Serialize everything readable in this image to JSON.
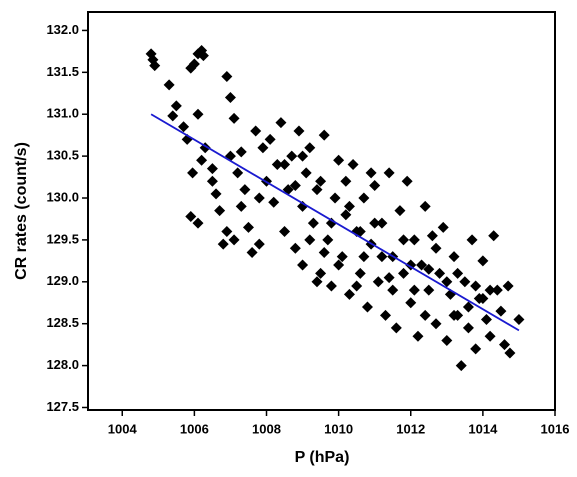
{
  "chart_data": {
    "type": "scatter",
    "xlabel": "P (hPa)",
    "ylabel": "CR rates (count/s)",
    "marker": "diamond",
    "color": "#000000",
    "x": [
      1004.8,
      1004.85,
      1004.9,
      1005.3,
      1005.4,
      1005.5,
      1005.7,
      1005.9,
      1006.0,
      1006.1,
      1006.2,
      1006.25,
      1005.8,
      1005.95,
      1005.9,
      1006.1,
      1006.2,
      1006.1,
      1006.3,
      1006.5,
      1006.6,
      1006.7,
      1006.9,
      1007.0,
      1007.1,
      1007.0,
      1007.2,
      1006.9,
      1007.1,
      1007.3,
      1007.4,
      1007.5,
      1007.6,
      1007.8,
      1007.9,
      1007.7,
      1007.8,
      1007.3,
      1006.5,
      1006.8,
      1008.0,
      1008.1,
      1008.2,
      1008.3,
      1008.4,
      1008.5,
      1008.6,
      1008.7,
      1008.8,
      1008.9,
      1009.0,
      1009.0,
      1009.1,
      1009.2,
      1009.3,
      1009.4,
      1009.5,
      1009.6,
      1009.7,
      1009.8,
      1009.9,
      1010.0,
      1010.1,
      1010.2,
      1010.3,
      1010.4,
      1010.5,
      1010.6,
      1010.7,
      1010.8,
      1010.9,
      1011.0,
      1011.1,
      1011.2,
      1011.3,
      1011.4,
      1011.5,
      1011.6,
      1011.7,
      1011.8,
      1011.9,
      1012.0,
      1012.1,
      1012.2,
      1012.3,
      1012.4,
      1012.5,
      1012.6,
      1012.7,
      1012.8,
      1012.9,
      1013.0,
      1013.1,
      1013.2,
      1013.3,
      1013.4,
      1013.5,
      1013.6,
      1013.7,
      1013.8,
      1013.9,
      1014.0,
      1014.1,
      1014.2,
      1014.3,
      1014.4,
      1014.5,
      1014.6,
      1014.7,
      1014.75,
      1015.0,
      1008.5,
      1009.2,
      1009.5,
      1009.8,
      1010.0,
      1010.3,
      1010.6,
      1010.9,
      1011.2,
      1011.5,
      1011.8,
      1012.1,
      1012.4,
      1012.7,
      1013.0,
      1013.3,
      1013.6,
      1014.0,
      1009.0,
      1009.4,
      1010.2,
      1010.7,
      1011.0,
      1011.4,
      1012.0,
      1012.5,
      1013.2,
      1013.8,
      1014.2,
      1008.8,
      1009.6,
      1010.5
    ],
    "values": [
      131.72,
      131.65,
      131.58,
      131.35,
      130.98,
      131.1,
      130.85,
      131.55,
      131.6,
      131.72,
      131.76,
      131.7,
      130.7,
      130.3,
      129.78,
      129.7,
      130.45,
      131.0,
      130.6,
      130.2,
      130.05,
      129.85,
      131.45,
      131.2,
      130.95,
      130.5,
      130.3,
      129.6,
      129.5,
      129.9,
      130.1,
      129.65,
      129.35,
      129.45,
      130.6,
      130.8,
      130.0,
      130.55,
      130.35,
      129.45,
      130.2,
      130.7,
      129.95,
      130.4,
      130.9,
      129.6,
      130.1,
      130.5,
      129.4,
      130.8,
      129.9,
      129.2,
      130.3,
      130.6,
      129.7,
      129.0,
      130.2,
      130.75,
      129.5,
      128.95,
      130.0,
      130.45,
      129.3,
      129.8,
      128.85,
      130.4,
      129.6,
      129.1,
      130.0,
      128.7,
      129.45,
      130.15,
      129.0,
      129.7,
      128.6,
      130.3,
      129.3,
      128.45,
      129.85,
      129.1,
      130.2,
      128.75,
      129.5,
      128.35,
      129.2,
      129.9,
      128.9,
      129.55,
      128.5,
      129.1,
      129.65,
      128.3,
      128.85,
      129.3,
      128.6,
      128.0,
      129.0,
      128.45,
      129.5,
      128.2,
      128.8,
      129.25,
      128.55,
      128.35,
      129.55,
      128.9,
      128.65,
      128.25,
      128.95,
      128.15,
      128.55,
      130.4,
      129.5,
      129.1,
      129.7,
      129.2,
      129.9,
      129.6,
      130.3,
      129.3,
      128.9,
      129.5,
      128.9,
      128.6,
      129.4,
      129.0,
      129.1,
      128.7,
      128.8,
      130.5,
      130.1,
      130.2,
      129.3,
      129.7,
      129.05,
      129.2,
      129.15,
      128.6,
      128.95,
      128.9,
      130.15,
      129.35,
      128.95
    ],
    "fit": {
      "x": [
        1004.8,
        1015.0
      ],
      "values": [
        131.0,
        128.42
      ],
      "color": "#1a1ad0"
    },
    "xlim": [
      1003.05,
      1016.0
    ],
    "ylim": [
      127.47,
      132.22
    ],
    "xticks": [
      1004,
      1006,
      1008,
      1010,
      1012,
      1014,
      1016
    ],
    "yticks": [
      127.5,
      {
        "value": 128,
        "label": "128.0"
      },
      128.5,
      {
        "value": 129,
        "label": "129.0"
      },
      129.5,
      {
        "value": 130,
        "label": "130.0"
      },
      130.5,
      {
        "value": 131,
        "label": "131.0"
      },
      131.5,
      {
        "value": 132,
        "label": "132.0"
      }
    ]
  }
}
